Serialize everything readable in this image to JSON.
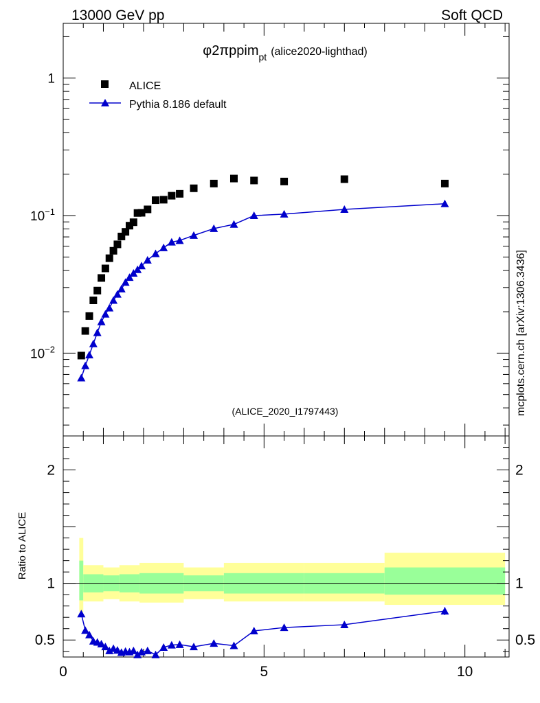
{
  "header": {
    "left": "13000 GeV pp",
    "right": "Soft QCD"
  },
  "title": {
    "main": "φ2πppim",
    "sub": "pt",
    "tag": "(alice2020-lighthad)"
  },
  "watermark": "(ALICE_2020_I1797443)",
  "side_label": "mcplots.cern.ch [arXiv:1306.3436]",
  "legend": {
    "data": "ALICE",
    "mc": "Pythia 8.186 default"
  },
  "colors": {
    "data": "#000000",
    "mc": "#0000cc",
    "band_outer": "#ffff99",
    "band_inner": "#99ff99",
    "watermark": "#999999"
  },
  "chart_data": [
    {
      "type": "scatter",
      "yscale": "log",
      "ylim": [
        0.0025,
        2.5
      ],
      "xlim": [
        0,
        11.1
      ],
      "yticks": [
        {
          "v": 1,
          "base": "1",
          "exp": ""
        },
        {
          "v": 0.1,
          "base": "10",
          "exp": "−1"
        },
        {
          "v": 0.01,
          "base": "10",
          "exp": "−2"
        }
      ],
      "series": [
        {
          "name": "ALICE",
          "x": [
            0.45,
            0.55,
            0.65,
            0.75,
            0.85,
            0.95,
            1.05,
            1.15,
            1.25,
            1.35,
            1.45,
            1.55,
            1.65,
            1.75,
            1.85,
            1.95,
            2.1,
            2.3,
            2.5,
            2.7,
            2.9,
            3.25,
            3.75,
            4.25,
            4.75,
            5.5,
            7.0,
            9.5
          ],
          "y": [
            0.0096,
            0.0145,
            0.0186,
            0.0242,
            0.0285,
            0.0352,
            0.0413,
            0.049,
            0.0555,
            0.0618,
            0.0705,
            0.0762,
            0.0845,
            0.0895,
            0.1045,
            0.1048,
            0.111,
            0.1295,
            0.1305,
            0.1395,
            0.144,
            0.158,
            0.171,
            0.186,
            0.18,
            0.177,
            0.184,
            0.171
          ]
        },
        {
          "name": "Pythia 8.186 default",
          "x": [
            0.45,
            0.55,
            0.65,
            0.75,
            0.85,
            0.95,
            1.05,
            1.15,
            1.25,
            1.35,
            1.45,
            1.55,
            1.65,
            1.75,
            1.85,
            1.95,
            2.1,
            2.3,
            2.5,
            2.7,
            2.9,
            3.25,
            3.75,
            4.25,
            4.75,
            5.5,
            7.0,
            9.5
          ],
          "y": [
            0.0066,
            0.0081,
            0.0097,
            0.0117,
            0.0141,
            0.0169,
            0.0192,
            0.0213,
            0.0242,
            0.0268,
            0.0293,
            0.0327,
            0.0355,
            0.0381,
            0.0405,
            0.0431,
            0.0475,
            0.0529,
            0.0584,
            0.0642,
            0.0659,
            0.0718,
            0.0805,
            0.0864,
            0.1,
            0.1025,
            0.111,
            0.122
          ]
        }
      ]
    },
    {
      "type": "line",
      "ylabel": "Ratio to ALICE",
      "ylim": [
        0.35,
        2.3
      ],
      "xlim": [
        0,
        11.1
      ],
      "yticks": [
        2,
        1,
        0.5
      ],
      "xticks": [
        0,
        5,
        10
      ],
      "bands": [
        {
          "lo": 0.4,
          "hi": 0.5,
          "outer": [
            0.75,
            1.4
          ],
          "inner": [
            0.85,
            1.2
          ]
        },
        {
          "lo": 0.5,
          "hi": 1.0,
          "outer": [
            0.84,
            1.16
          ],
          "inner": [
            0.92,
            1.08
          ]
        },
        {
          "lo": 1.0,
          "hi": 1.4,
          "outer": [
            0.86,
            1.14
          ],
          "inner": [
            0.93,
            1.07
          ]
        },
        {
          "lo": 1.4,
          "hi": 1.9,
          "outer": [
            0.84,
            1.16
          ],
          "inner": [
            0.92,
            1.08
          ]
        },
        {
          "lo": 1.9,
          "hi": 3.0,
          "outer": [
            0.83,
            1.18
          ],
          "inner": [
            0.91,
            1.09
          ]
        },
        {
          "lo": 3.0,
          "hi": 4.0,
          "outer": [
            0.86,
            1.14
          ],
          "inner": [
            0.93,
            1.07
          ]
        },
        {
          "lo": 4.0,
          "hi": 6.0,
          "outer": [
            0.84,
            1.18
          ],
          "inner": [
            0.91,
            1.09
          ]
        },
        {
          "lo": 6.0,
          "hi": 8.0,
          "outer": [
            0.84,
            1.18
          ],
          "inner": [
            0.91,
            1.09
          ]
        },
        {
          "lo": 8.0,
          "hi": 11.0,
          "outer": [
            0.81,
            1.27
          ],
          "inner": [
            0.9,
            1.14
          ]
        }
      ],
      "series": [
        {
          "name": "Pythia 8.186 default",
          "x": [
            0.45,
            0.55,
            0.65,
            0.75,
            0.85,
            0.95,
            1.05,
            1.15,
            1.25,
            1.35,
            1.45,
            1.55,
            1.65,
            1.75,
            1.85,
            1.95,
            2.1,
            2.3,
            2.5,
            2.7,
            2.9,
            3.25,
            3.75,
            4.25,
            4.75,
            5.5,
            7.0,
            9.5
          ],
          "y": [
            0.73,
            0.585,
            0.545,
            0.49,
            0.48,
            0.465,
            0.44,
            0.405,
            0.425,
            0.41,
            0.39,
            0.4,
            0.395,
            0.405,
            0.37,
            0.395,
            0.405,
            0.37,
            0.435,
            0.455,
            0.46,
            0.44,
            0.47,
            0.45,
            0.58,
            0.61,
            0.635,
            0.755
          ],
          "err": [
            0.02,
            0.01,
            0.01,
            0.01,
            0.01,
            0.01,
            0.01,
            0.01,
            0.01,
            0.01,
            0.01,
            0.01,
            0.01,
            0.01,
            0.01,
            0.01,
            0.01,
            0.01,
            0.01,
            0.01,
            0.01,
            0.01,
            0.01,
            0.01,
            0.02,
            0.02,
            0.02,
            0.035
          ]
        }
      ]
    }
  ]
}
